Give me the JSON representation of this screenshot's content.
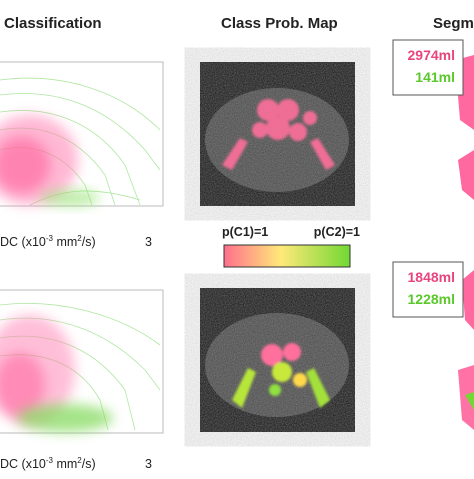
{
  "header": {
    "classification": "Classification",
    "prob_map": "Class Prob. Map",
    "segmentation": "Segm"
  },
  "rows": [
    {
      "axis_label": {
        "text": "DC (x10",
        "exp": "-3",
        "unit": " mm",
        "unit_exp": "2",
        "tail": "/s)"
      },
      "tick": "3",
      "volumes": [
        "2974ml",
        "141ml"
      ]
    },
    {
      "axis_label": {
        "text": "DC (x10",
        "exp": "-3",
        "unit": " mm",
        "unit_exp": "2",
        "tail": "/s)"
      },
      "tick": "3",
      "volumes": [
        "1848ml",
        "1228ml"
      ]
    }
  ],
  "colorbar": {
    "left": "p(C1)=1",
    "right": "p(C2)=1"
  }
}
